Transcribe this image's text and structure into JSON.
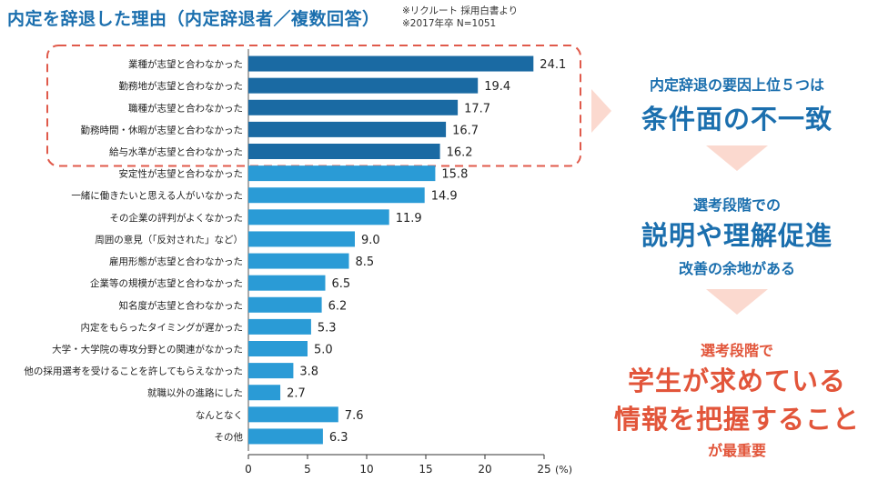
{
  "title": "内定を辞退した理由（内定辞退者／複数回答）",
  "source": {
    "line1": "※リクルート 採用白書より",
    "line2": "※2017年卒 N=1051"
  },
  "chart_data": {
    "type": "bar",
    "orientation": "horizontal",
    "categories": [
      "業種が志望と合わなかった",
      "勤務地が志望と合わなかった",
      "職種が志望と合わなかった",
      "勤務時間・休暇が志望と合わなかった",
      "給与水準が志望と合わなかった",
      "安定性が志望と合わなかった",
      "一緒に働きたいと思える人がいなかった",
      "その企業の評判がよくなかった",
      "周囲の意見（「反対された」など）",
      "雇用形態が志望と合わなかった",
      "企業等の規模が志望と合わなかった",
      "知名度が志望と合わなかった",
      "内定をもらったタイミングが遅かった",
      "大学・大学院の専攻分野との関連がなかった",
      "他の採用選考を受けることを許してもらえなかった",
      "就職以外の進路にした",
      "なんとなく",
      "その他"
    ],
    "values": [
      24.1,
      19.4,
      17.7,
      16.7,
      16.2,
      15.8,
      14.9,
      11.9,
      9.0,
      8.5,
      6.5,
      6.2,
      5.3,
      5.0,
      3.8,
      2.7,
      7.6,
      6.3
    ],
    "value_labels": [
      "24.1",
      "19.4",
      "17.7",
      "16.7",
      "16.2",
      "15.8",
      "14.9",
      "11.9",
      "9.0",
      "8.5",
      "6.5",
      "6.2",
      "5.3",
      "5.0",
      "3.8",
      "2.7",
      "7.6",
      "6.3"
    ],
    "highlighted_count": 5,
    "xlim": [
      0,
      25
    ],
    "x_ticks": [
      0,
      5,
      10,
      15,
      20,
      25
    ],
    "x_unit": "(%)",
    "colors": {
      "highlight": "#1a6aa3",
      "normal": "#2a9bd6",
      "frame": "#e05a4b"
    }
  },
  "callouts": {
    "c1_small": "内定辞退の要因上位５つは",
    "c1_large": "条件面の不一致",
    "c2_small": "選考段階での",
    "c2_large": "説明や理解促進",
    "c2_after": "改善の余地がある",
    "c3_small": "選考段階で",
    "c3_large1": "学生が求めている",
    "c3_large2": "情報を把握すること",
    "c3_after": "が最重要"
  },
  "colors": {
    "blue_text": "#1b6fae",
    "red_text": "#e2553a",
    "arrow": "#fbd9cf"
  }
}
